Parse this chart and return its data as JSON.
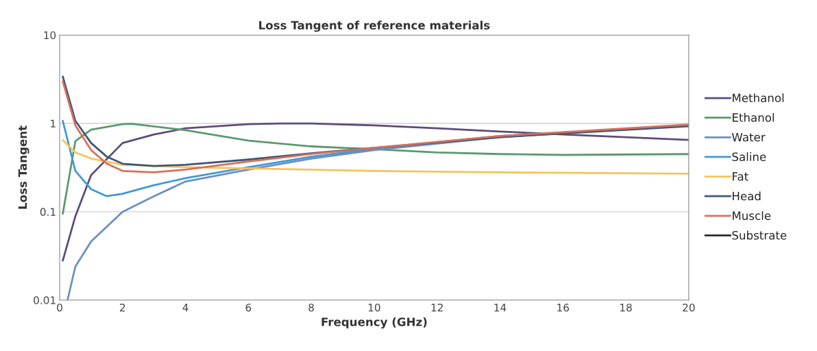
{
  "chart_data": {
    "type": "line",
    "title": "Loss Tangent of reference materials",
    "xlabel": "Frequency (GHz)",
    "ylabel": "Loss Tangent",
    "log": "y",
    "xlim": [
      0,
      20
    ],
    "xticks": [
      0,
      2,
      4,
      6,
      8,
      10,
      12,
      14,
      16,
      18,
      20
    ],
    "ylim": [
      0.01,
      10
    ],
    "yticks": [
      {
        "value": 0.01,
        "label": "0.01"
      },
      {
        "value": 0.1,
        "label": "0.1"
      },
      1,
      10
    ],
    "grid": "y",
    "legend": "right",
    "marker": "none",
    "line_style": "solid",
    "series": [
      {
        "name": "Methanol",
        "color": "#5e4b7a",
        "x": [
          0.1,
          0.5,
          1,
          2,
          3,
          4,
          6,
          7,
          8,
          10,
          12,
          14,
          16,
          18,
          20
        ],
        "values": [
          0.028,
          0.089,
          0.26,
          0.6,
          0.75,
          0.88,
          0.98,
          1.0,
          1.0,
          0.95,
          0.88,
          0.81,
          0.75,
          0.7,
          0.65
        ]
      },
      {
        "name": "Ethanol",
        "color": "#5a9a6e",
        "x": [
          0.1,
          0.5,
          1,
          2,
          2.3,
          4,
          6,
          8,
          10,
          12,
          14,
          16,
          20
        ],
        "values": [
          0.095,
          0.63,
          0.85,
          0.98,
          0.99,
          0.84,
          0.64,
          0.55,
          0.51,
          0.47,
          0.45,
          0.44,
          0.45
        ]
      },
      {
        "name": "Water",
        "color": "#6b8fc4",
        "x": [
          0.25,
          0.5,
          1,
          2,
          3,
          4,
          6,
          8,
          10,
          14,
          20
        ],
        "values": [
          0.01,
          0.024,
          0.046,
          0.1,
          0.15,
          0.22,
          0.3,
          0.4,
          0.5,
          0.7,
          0.95
        ]
      },
      {
        "name": "Saline",
        "color": "#3e9ad8",
        "x": [
          0.1,
          0.5,
          1,
          1.5,
          2,
          3,
          4,
          6,
          8,
          10,
          14,
          20
        ],
        "values": [
          1.07,
          0.29,
          0.18,
          0.15,
          0.16,
          0.2,
          0.24,
          0.32,
          0.42,
          0.52,
          0.72,
          0.95
        ]
      },
      {
        "name": "Fat",
        "color": "#f5c35a",
        "x": [
          0.1,
          0.5,
          1,
          2,
          4,
          6,
          10,
          14,
          20
        ],
        "values": [
          0.65,
          0.47,
          0.4,
          0.34,
          0.32,
          0.31,
          0.29,
          0.28,
          0.27
        ]
      },
      {
        "name": "Head",
        "color": "#3f5777",
        "x": [
          0.1,
          0.5,
          1,
          1.5,
          2,
          3,
          4,
          6,
          8,
          10,
          14,
          20
        ],
        "values": [
          3.4,
          1.07,
          0.6,
          0.42,
          0.35,
          0.33,
          0.34,
          0.39,
          0.46,
          0.53,
          0.7,
          0.93
        ]
      },
      {
        "name": "Muscle",
        "color": "#d8705a",
        "x": [
          0.1,
          0.5,
          1,
          1.5,
          2,
          3,
          4,
          6,
          8,
          10,
          14,
          20
        ],
        "values": [
          3.0,
          0.95,
          0.5,
          0.35,
          0.29,
          0.28,
          0.3,
          0.37,
          0.45,
          0.53,
          0.72,
          0.97
        ]
      },
      {
        "name": "Substrate",
        "color": "#2b2b2b"
      }
    ]
  }
}
